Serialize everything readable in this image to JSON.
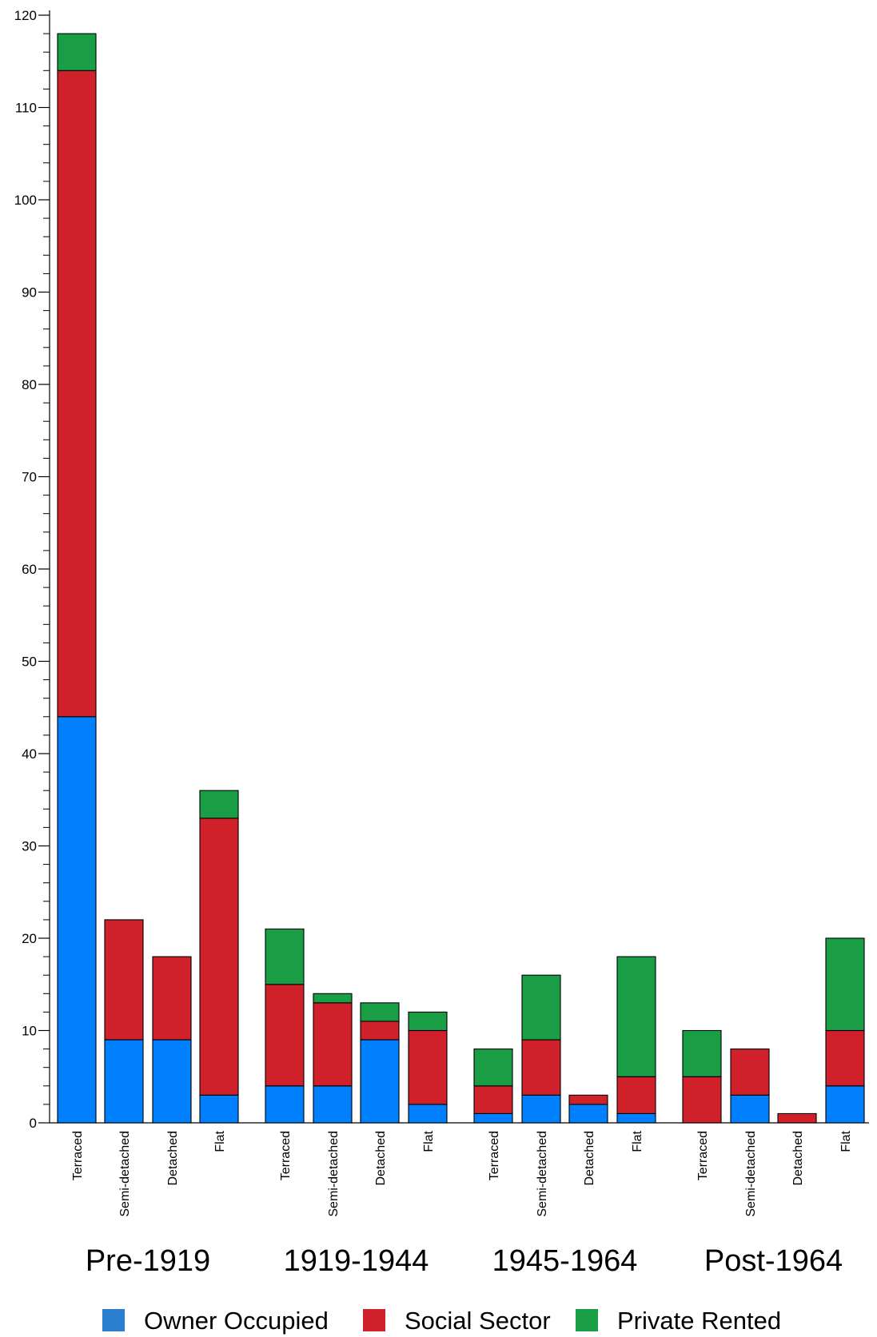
{
  "chart_data": {
    "type": "bar",
    "stacked": true,
    "title": "",
    "xlabel": "",
    "ylabel": "",
    "ylim": [
      0,
      120
    ],
    "yticks": [
      0,
      10,
      20,
      30,
      40,
      50,
      60,
      70,
      80,
      90,
      100,
      110,
      120
    ],
    "ytick_labels": [
      "0",
      "10",
      "20",
      "30",
      "40",
      "50",
      "60",
      "70",
      "80",
      "90",
      "100",
      "110",
      "120"
    ],
    "grid": false,
    "legend_position": "bottom",
    "groups": [
      {
        "label": "Pre-1919",
        "categories": [
          "Terraced",
          "Semi-detached",
          "Detached",
          "Flat"
        ]
      },
      {
        "label": "1919-1944",
        "categories": [
          "Terraced",
          "Semi-detached",
          "Detached",
          "Flat"
        ]
      },
      {
        "label": "1945-1964",
        "categories": [
          "Terraced",
          "Semi-detached",
          "Detached",
          "Flat"
        ]
      },
      {
        "label": "Post-1964",
        "categories": [
          "Terraced",
          "Semi-detached",
          "Detached",
          "Flat"
        ]
      }
    ],
    "series": [
      {
        "name": "Owner Occupied",
        "color": "#0080ff",
        "values": [
          44,
          9,
          9,
          3,
          4,
          4,
          9,
          2,
          1,
          3,
          2,
          1,
          0,
          3,
          0,
          4
        ]
      },
      {
        "name": "Social Sector",
        "color": "#d0202a",
        "values": [
          70,
          13,
          9,
          30,
          11,
          9,
          2,
          8,
          3,
          6,
          1,
          4,
          5,
          5,
          1,
          6
        ]
      },
      {
        "name": "Private Rented",
        "color": "#1a9e45",
        "values": [
          4,
          0,
          0,
          3,
          6,
          1,
          2,
          2,
          4,
          7,
          0,
          13,
          5,
          0,
          0,
          10
        ]
      }
    ],
    "legend_swatch_colors": [
      "#2a7fcf",
      "#d0202a",
      "#1a9e45"
    ]
  }
}
